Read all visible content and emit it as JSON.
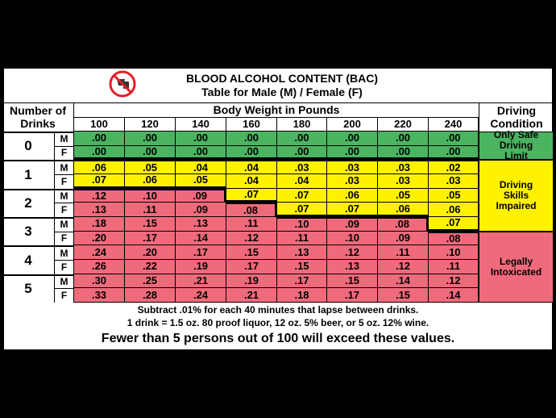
{
  "header": {
    "title": "BLOOD ALCOHOL CONTENT (BAC)",
    "subtitle": "Table for Male (M) / Female (F)"
  },
  "table": {
    "drinks_header": "Number of Drinks",
    "weight_header": "Body Weight in Pounds",
    "condition_header": "Driving Condition",
    "weights": [
      "100",
      "120",
      "140",
      "160",
      "180",
      "200",
      "220",
      "240"
    ],
    "groups": [
      {
        "drinks": "0",
        "rows": [
          {
            "sex": "M",
            "values": [
              ".00",
              ".00",
              ".00",
              ".00",
              ".00",
              ".00",
              ".00",
              ".00"
            ]
          },
          {
            "sex": "F",
            "values": [
              ".00",
              ".00",
              ".00",
              ".00",
              ".00",
              ".00",
              ".00",
              ".00"
            ]
          }
        ]
      },
      {
        "drinks": "1",
        "rows": [
          {
            "sex": "M",
            "values": [
              ".06",
              ".05",
              ".04",
              ".04",
              ".03",
              ".03",
              ".03",
              ".02"
            ]
          },
          {
            "sex": "F",
            "values": [
              ".07",
              ".06",
              ".05",
              ".04",
              ".04",
              ".03",
              ".03",
              ".03"
            ]
          }
        ]
      },
      {
        "drinks": "2",
        "rows": [
          {
            "sex": "M",
            "values": [
              ".12",
              ".10",
              ".09",
              ".07",
              ".07",
              ".06",
              ".05",
              ".05"
            ]
          },
          {
            "sex": "F",
            "values": [
              ".13",
              ".11",
              ".09",
              ".08",
              ".07",
              ".07",
              ".06",
              ".06"
            ]
          }
        ]
      },
      {
        "drinks": "3",
        "rows": [
          {
            "sex": "M",
            "values": [
              ".18",
              ".15",
              ".13",
              ".11",
              ".10",
              ".09",
              ".08",
              ".07"
            ]
          },
          {
            "sex": "F",
            "values": [
              ".20",
              ".17",
              ".14",
              ".12",
              ".11",
              ".10",
              ".09",
              ".08"
            ]
          }
        ]
      },
      {
        "drinks": "4",
        "rows": [
          {
            "sex": "M",
            "values": [
              ".24",
              ".20",
              ".17",
              ".15",
              ".13",
              ".12",
              ".11",
              ".10"
            ]
          },
          {
            "sex": "F",
            "values": [
              ".26",
              ".22",
              ".19",
              ".17",
              ".15",
              ".13",
              ".12",
              ".11"
            ]
          }
        ]
      },
      {
        "drinks": "5",
        "rows": [
          {
            "sex": "M",
            "values": [
              ".30",
              ".25",
              ".21",
              ".19",
              ".17",
              ".15",
              ".14",
              ".12"
            ]
          },
          {
            "sex": "F",
            "values": [
              ".33",
              ".28",
              ".24",
              ".21",
              ".18",
              ".17",
              ".15",
              ".14"
            ]
          }
        ]
      }
    ],
    "conditions": [
      "Only Safe Driving Limit",
      "Driving Skills Impaired",
      "Legally Intoxicated"
    ]
  },
  "footer": {
    "lines": [
      "Subtract .01% for each 40 minutes that lapse between drinks.",
      "1 drink = 1.5 oz. 80 proof liquor, 12 oz. 5% beer, or 5 oz. 12% wine.",
      "Fewer than 5 persons out of 100 will exceed these values."
    ]
  }
}
